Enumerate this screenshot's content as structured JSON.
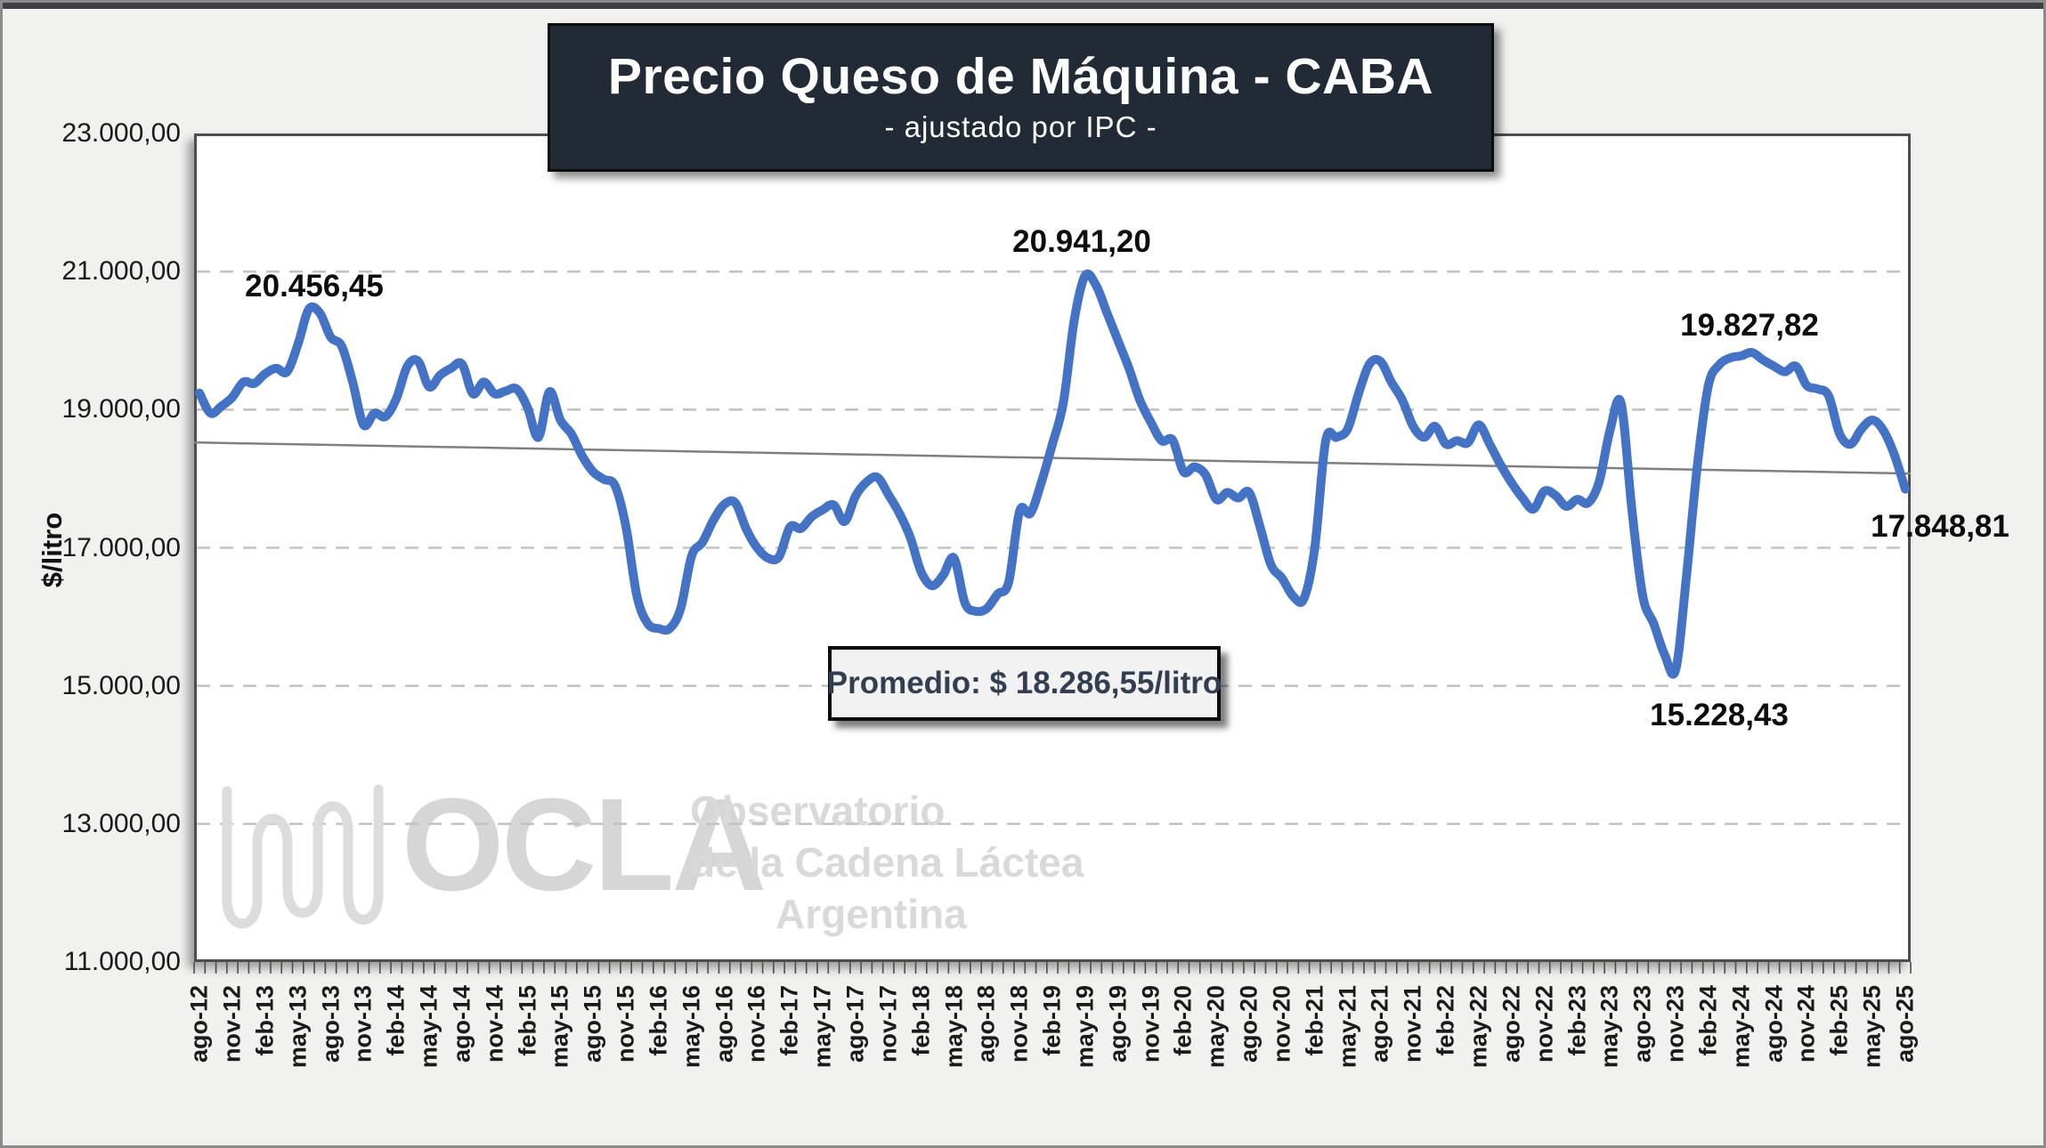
{
  "title": {
    "main": "Precio Queso de Máquina - CABA",
    "subtitle": "- ajustado por IPC -"
  },
  "average_box": {
    "label": "Promedio: $ 18.286,55/litro"
  },
  "annotations": [
    "20.456,45",
    "20.941,20",
    "19.827,82",
    "15.228,43",
    "17.848,81"
  ],
  "watermark": {
    "acronym": "OCLA",
    "line1": "Observatorio",
    "line2": "de la Cadena Láctea",
    "line3": "Argentina"
  },
  "y_axis": {
    "unit_label": "$/litro",
    "ticks": [
      "23.000,00",
      "21.000,00",
      "19.000,00",
      "17.000,00",
      "15.000,00",
      "13.000,00",
      "11.000,00"
    ]
  },
  "x_axis": {
    "labels": [
      "ago-12",
      "nov-12",
      "feb-13",
      "may-13",
      "ago-13",
      "nov-13",
      "feb-14",
      "may-14",
      "ago-14",
      "nov-14",
      "feb-15",
      "may-15",
      "ago-15",
      "nov-15",
      "feb-16",
      "may-16",
      "ago-16",
      "nov-16",
      "feb-17",
      "may-17",
      "ago-17",
      "nov-17",
      "feb-18",
      "may-18",
      "ago-18",
      "nov-18",
      "feb-19",
      "may-19",
      "ago-19",
      "nov-19",
      "feb-20",
      "may-20",
      "ago-20",
      "nov-20",
      "feb-21",
      "may-21",
      "ago-21",
      "nov-21",
      "feb-22",
      "may-22",
      "ago-22",
      "nov-22",
      "feb-23",
      "may-23",
      "ago-23",
      "nov-23",
      "feb-24",
      "may-24",
      "ago-24",
      "nov-24",
      "feb-25",
      "may-25",
      "ago-25"
    ]
  },
  "colors": {
    "line": "#4472c4",
    "trendline": "#7f7f7f",
    "gridline": "#c3c3c3",
    "plot_border": "#4d4d4d",
    "title_bg": "#222a35",
    "title_text": "#ffffff",
    "average_text": "#333f50",
    "annotation_text": "#0d0d0d",
    "watermark": "#d6d6d6",
    "page_bg": "#f1f1f0"
  },
  "chart_data": {
    "type": "line",
    "title": "Precio Queso de Máquina - CABA - ajustado por IPC -",
    "ylabel": "$/litro",
    "ylim": [
      11000,
      23000
    ],
    "y_gridlines": [
      21000,
      19000,
      17000,
      15000,
      13000
    ],
    "grid": "horizontal dashed",
    "legend": "none",
    "x_start": "ago-12",
    "x_end": "ago-25",
    "x_step": "1 month",
    "x": [
      "ago-12",
      "sep-12",
      "oct-12",
      "nov-12",
      "dic-12",
      "ene-13",
      "feb-13",
      "mar-13",
      "abr-13",
      "may-13",
      "jun-13",
      "jul-13",
      "ago-13",
      "sep-13",
      "oct-13",
      "nov-13",
      "dic-13",
      "ene-14",
      "feb-14",
      "mar-14",
      "abr-14",
      "may-14",
      "jun-14",
      "jul-14",
      "ago-14",
      "sep-14",
      "oct-14",
      "nov-14",
      "dic-14",
      "ene-15",
      "feb-15",
      "mar-15",
      "abr-15",
      "may-15",
      "jun-15",
      "jul-15",
      "ago-15",
      "sep-15",
      "oct-15",
      "nov-15",
      "dic-15",
      "ene-16",
      "feb-16",
      "mar-16",
      "abr-16",
      "may-16",
      "jun-16",
      "jul-16",
      "ago-16",
      "sep-16",
      "oct-16",
      "nov-16",
      "dic-16",
      "ene-17",
      "feb-17",
      "mar-17",
      "abr-17",
      "may-17",
      "jun-17",
      "jul-17",
      "ago-17",
      "sep-17",
      "oct-17",
      "nov-17",
      "dic-17",
      "ene-18",
      "feb-18",
      "mar-18",
      "abr-18",
      "may-18",
      "jun-18",
      "jul-18",
      "ago-18",
      "sep-18",
      "oct-18",
      "nov-18",
      "dic-18",
      "ene-19",
      "feb-19",
      "mar-19",
      "abr-19",
      "may-19",
      "jun-19",
      "jul-19",
      "ago-19",
      "sep-19",
      "oct-19",
      "nov-19",
      "dic-19",
      "ene-20",
      "feb-20",
      "mar-20",
      "abr-20",
      "may-20",
      "jun-20",
      "jul-20",
      "ago-20",
      "sep-20",
      "oct-20",
      "nov-20",
      "dic-20",
      "ene-21",
      "feb-21",
      "mar-21",
      "abr-21",
      "may-21",
      "jun-21",
      "jul-21",
      "ago-21",
      "sep-21",
      "oct-21",
      "nov-21",
      "dic-21",
      "ene-22",
      "feb-22",
      "mar-22",
      "abr-22",
      "may-22",
      "jun-22",
      "jul-22",
      "ago-22",
      "sep-22",
      "oct-22",
      "nov-22",
      "dic-22",
      "ene-23",
      "feb-23",
      "mar-23",
      "abr-23",
      "may-23",
      "jun-23",
      "jul-23",
      "ago-23",
      "sep-23",
      "oct-23",
      "nov-23",
      "dic-23",
      "ene-24",
      "feb-24",
      "mar-24",
      "abr-24",
      "may-24",
      "jun-24",
      "jul-24",
      "ago-24",
      "sep-24",
      "oct-24",
      "nov-24",
      "dic-24",
      "ene-25",
      "feb-25",
      "mar-25",
      "abr-25",
      "may-25",
      "jun-25",
      "jul-25",
      "ago-25"
    ],
    "series": [
      {
        "name": "Precio Queso de Máquina CABA ajustado por IPC ($/litro)",
        "values": [
          19240,
          18950,
          19050,
          19180,
          19400,
          19380,
          19520,
          19600,
          19550,
          19950,
          20456.45,
          20400,
          20050,
          19920,
          19400,
          18780,
          18950,
          18900,
          19160,
          19630,
          19700,
          19330,
          19500,
          19600,
          19660,
          19230,
          19400,
          19230,
          19270,
          19300,
          19030,
          18600,
          19260,
          18850,
          18650,
          18330,
          18100,
          17990,
          17900,
          17300,
          16300,
          15900,
          15830,
          15830,
          16120,
          16880,
          17080,
          17400,
          17630,
          17650,
          17270,
          17000,
          16850,
          16870,
          17300,
          17280,
          17450,
          17550,
          17620,
          17380,
          17750,
          17950,
          18020,
          17770,
          17500,
          17150,
          16650,
          16450,
          16600,
          16850,
          16200,
          16080,
          16120,
          16330,
          16500,
          17530,
          17500,
          17950,
          18500,
          19100,
          20300,
          20941.2,
          20800,
          20400,
          20000,
          19600,
          19140,
          18820,
          18550,
          18560,
          18100,
          18170,
          18060,
          17700,
          17800,
          17720,
          17800,
          17300,
          16750,
          16560,
          16300,
          16260,
          17000,
          18550,
          18600,
          18720,
          19230,
          19660,
          19700,
          19400,
          19140,
          18760,
          18600,
          18760,
          18500,
          18550,
          18520,
          18780,
          18500,
          18200,
          17940,
          17720,
          17560,
          17820,
          17760,
          17600,
          17700,
          17650,
          17950,
          18700,
          19100,
          17550,
          16300,
          15900,
          15450,
          15228.43,
          16600,
          18200,
          19350,
          19650,
          19750,
          19780,
          19827.82,
          19720,
          19630,
          19550,
          19630,
          19350,
          19300,
          19200,
          18650,
          18500,
          18720,
          18850,
          18700,
          18350,
          17848.81
        ]
      }
    ],
    "labeled_points": [
      {
        "x": "jun-13",
        "value": 20456.45
      },
      {
        "x": "may-19",
        "value": 20941.2
      },
      {
        "x": "jun-24",
        "value": 19827.82
      },
      {
        "x": "nov-23",
        "value": 15228.43
      },
      {
        "x": "ago-25",
        "value": 17848.81
      }
    ],
    "average": 18286.55,
    "trendline": {
      "type": "linear",
      "start_value": 18525,
      "end_value": 18075
    }
  }
}
